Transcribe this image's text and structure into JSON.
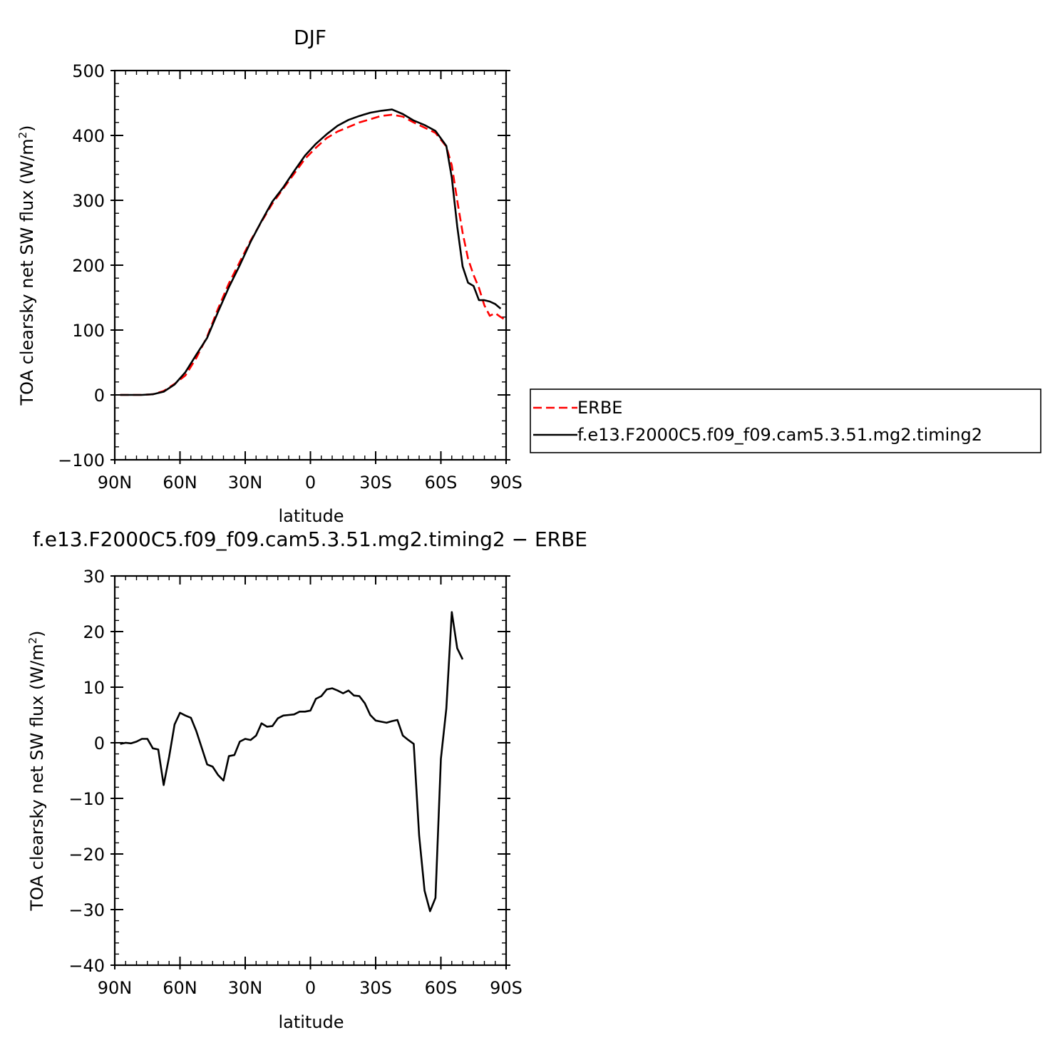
{
  "chart_data": [
    {
      "type": "line",
      "title": "DJF",
      "xlabel": "latitude",
      "ylabel": "TOA clearsky net SW flux (W/m",
      "ylabel_superscript": "2",
      "ylabel_suffix": ")",
      "xlim": [
        90,
        -90
      ],
      "ylim": [
        -100,
        500
      ],
      "xticks": [
        {
          "value": 90,
          "label": "90N"
        },
        {
          "value": 60,
          "label": "60N"
        },
        {
          "value": 30,
          "label": "30N"
        },
        {
          "value": 0,
          "label": "0"
        },
        {
          "value": -30,
          "label": "30S"
        },
        {
          "value": -60,
          "label": "60S"
        },
        {
          "value": -90,
          "label": "90S"
        }
      ],
      "yticks": [
        {
          "value": 500,
          "label": "500"
        },
        {
          "value": 400,
          "label": "400"
        },
        {
          "value": 300,
          "label": "300"
        },
        {
          "value": 200,
          "label": "200"
        },
        {
          "value": 100,
          "label": "100"
        },
        {
          "value": 0,
          "label": "0"
        },
        {
          "value": -100,
          "label": "−100"
        }
      ],
      "legend_position": "right",
      "series": [
        {
          "name": "ERBE",
          "color": "#ff0000",
          "dash": "dashed",
          "points": [
            [
              87.5,
              0
            ],
            [
              82.5,
              0
            ],
            [
              77.5,
              0
            ],
            [
              72.5,
              1
            ],
            [
              67.5,
              6
            ],
            [
              62.5,
              17
            ],
            [
              57.5,
              30
            ],
            [
              52.5,
              57
            ],
            [
              47.5,
              90
            ],
            [
              42.5,
              133
            ],
            [
              37.5,
              172
            ],
            [
              32.5,
              205
            ],
            [
              27.5,
              238
            ],
            [
              22.5,
              267
            ],
            [
              17.5,
              295
            ],
            [
              12.5,
              318
            ],
            [
              7.5,
              341
            ],
            [
              2.5,
              364
            ],
            [
              -2.5,
              381
            ],
            [
              -7.5,
              396
            ],
            [
              -12.5,
              406
            ],
            [
              -17.5,
              413
            ],
            [
              -22.5,
              420
            ],
            [
              -27.5,
              425
            ],
            [
              -32.5,
              430
            ],
            [
              -37.5,
              432
            ],
            [
              -42.5,
              429
            ],
            [
              -47.5,
              420
            ],
            [
              -52.5,
              412
            ],
            [
              -57.5,
              404
            ],
            [
              -62.5,
              383
            ],
            [
              -65,
              354
            ],
            [
              -67.5,
              300
            ],
            [
              -70,
              250
            ],
            [
              -72.5,
              210
            ],
            [
              -75,
              185
            ],
            [
              -77.5,
              165
            ],
            [
              -80,
              138
            ],
            [
              -82.5,
              122
            ],
            [
              -85,
              126
            ],
            [
              -87.5,
              120
            ],
            [
              -89,
              117
            ]
          ]
        },
        {
          "name": "f.e13.F2000C5.f09_f09.cam5.3.51.mg2.timing2",
          "color": "#000000",
          "dash": "solid",
          "points": [
            [
              87.5,
              0
            ],
            [
              82.5,
              0
            ],
            [
              77.5,
              0
            ],
            [
              72.5,
              1
            ],
            [
              67.5,
              5
            ],
            [
              62.5,
              16
            ],
            [
              57.5,
              35
            ],
            [
              52.5,
              62
            ],
            [
              47.5,
              88
            ],
            [
              42.5,
              128
            ],
            [
              37.5,
              166
            ],
            [
              32.5,
              200
            ],
            [
              27.5,
              236
            ],
            [
              22.5,
              268
            ],
            [
              17.5,
              298
            ],
            [
              12.5,
              320
            ],
            [
              7.5,
              345
            ],
            [
              2.5,
              369
            ],
            [
              -2.5,
              387
            ],
            [
              -7.5,
              402
            ],
            [
              -12.5,
              415
            ],
            [
              -17.5,
              424
            ],
            [
              -22.5,
              430
            ],
            [
              -27.5,
              435
            ],
            [
              -32.5,
              438
            ],
            [
              -37.5,
              440
            ],
            [
              -42.5,
              433
            ],
            [
              -47.5,
              423
            ],
            [
              -52.5,
              416
            ],
            [
              -57.5,
              407
            ],
            [
              -62.5,
              384
            ],
            [
              -65,
              335
            ],
            [
              -67.5,
              260
            ],
            [
              -70,
              198
            ],
            [
              -72.5,
              173
            ],
            [
              -75,
              168
            ],
            [
              -77.5,
              146
            ],
            [
              -80,
              146
            ],
            [
              -82.5,
              144
            ],
            [
              -85,
              140
            ],
            [
              -87.5,
              133
            ]
          ]
        }
      ]
    },
    {
      "type": "line",
      "title": "f.e13.F2000C5.f09_f09.cam5.3.51.mg2.timing2 − ERBE",
      "xlabel": "latitude",
      "ylabel": "TOA clearsky net SW flux (W/m",
      "ylabel_superscript": "2",
      "ylabel_suffix": ")",
      "xlim": [
        90,
        -90
      ],
      "ylim": [
        -40,
        30
      ],
      "xticks": [
        {
          "value": 90,
          "label": "90N"
        },
        {
          "value": 60,
          "label": "60N"
        },
        {
          "value": 30,
          "label": "30N"
        },
        {
          "value": 0,
          "label": "0"
        },
        {
          "value": -30,
          "label": "30S"
        },
        {
          "value": -60,
          "label": "60S"
        },
        {
          "value": -90,
          "label": "90S"
        }
      ],
      "yticks": [
        {
          "value": 30,
          "label": "30"
        },
        {
          "value": 20,
          "label": "20"
        },
        {
          "value": 10,
          "label": "10"
        },
        {
          "value": 0,
          "label": "0"
        },
        {
          "value": -10,
          "label": "−10"
        },
        {
          "value": -20,
          "label": "−20"
        },
        {
          "value": -30,
          "label": "−30"
        },
        {
          "value": -40,
          "label": "−40"
        }
      ],
      "series": [
        {
          "color": "#000000",
          "dash": "solid",
          "points": [
            [
              87.5,
              -0.2
            ],
            [
              85,
              0
            ],
            [
              82.5,
              -0.1
            ],
            [
              80,
              0.2
            ],
            [
              77.5,
              0.7
            ],
            [
              75,
              0.7
            ],
            [
              72.5,
              -1
            ],
            [
              70,
              -1.2
            ],
            [
              67.5,
              -7.6
            ],
            [
              65,
              -2.5
            ],
            [
              62.5,
              3.3
            ],
            [
              60,
              5.4
            ],
            [
              57.5,
              4.9
            ],
            [
              55,
              4.5
            ],
            [
              52.5,
              2.1
            ],
            [
              50,
              -0.9
            ],
            [
              47.5,
              -3.9
            ],
            [
              45,
              -4.3
            ],
            [
              42.5,
              -5.8
            ],
            [
              40,
              -6.8
            ],
            [
              37.5,
              -2.4
            ],
            [
              35,
              -2.2
            ],
            [
              32.5,
              0.2
            ],
            [
              30,
              0.7
            ],
            [
              27.5,
              0.5
            ],
            [
              25,
              1.3
            ],
            [
              22.5,
              3.5
            ],
            [
              20,
              2.9
            ],
            [
              17.5,
              3
            ],
            [
              15,
              4.4
            ],
            [
              12.5,
              4.9
            ],
            [
              10,
              5
            ],
            [
              7.5,
              5.1
            ],
            [
              5,
              5.6
            ],
            [
              2.5,
              5.6
            ],
            [
              0,
              5.8
            ],
            [
              -2.5,
              7.9
            ],
            [
              -5,
              8.4
            ],
            [
              -7.5,
              9.6
            ],
            [
              -10,
              9.8
            ],
            [
              -12.5,
              9.4
            ],
            [
              -15,
              8.9
            ],
            [
              -17.5,
              9.4
            ],
            [
              -20,
              8.5
            ],
            [
              -22.5,
              8.4
            ],
            [
              -25,
              7.1
            ],
            [
              -27.5,
              5
            ],
            [
              -30,
              4
            ],
            [
              -32.5,
              3.8
            ],
            [
              -35,
              3.6
            ],
            [
              -37.5,
              3.9
            ],
            [
              -40,
              4.1
            ],
            [
              -42.5,
              1.3
            ],
            [
              -45,
              0.5
            ],
            [
              -47.5,
              -0.2
            ],
            [
              -50,
              -16.7
            ],
            [
              -52.5,
              -26.6
            ],
            [
              -55,
              -30.3
            ],
            [
              -57.5,
              -27.9
            ],
            [
              -60,
              -2.9
            ],
            [
              -62.5,
              6.1
            ],
            [
              -65,
              23.5
            ],
            [
              -67.5,
              17
            ],
            [
              -70,
              15
            ]
          ]
        }
      ]
    }
  ]
}
